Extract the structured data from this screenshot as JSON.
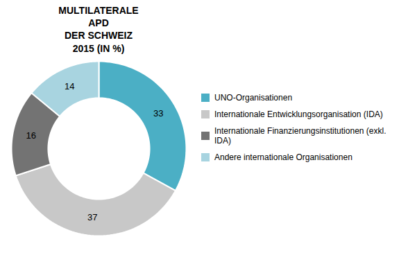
{
  "chart_data": {
    "type": "pie",
    "title": "MULTILATERALE\nAPD\nDER SCHWEIZ\n2015 (IN %)",
    "categories": [
      "UNO-Organisationen",
      "Internationale Entwicklungsorganisation (IDA)",
      "Internationale Finanzierungsinstitutionen (exkl. IDA)",
      "Andere internationale Organisationen"
    ],
    "values": [
      33,
      37,
      16,
      14
    ],
    "colors": [
      "#4bafc5",
      "#c8c8c8",
      "#737373",
      "#a8d4e0"
    ],
    "data_labels": true,
    "legend": "right"
  }
}
